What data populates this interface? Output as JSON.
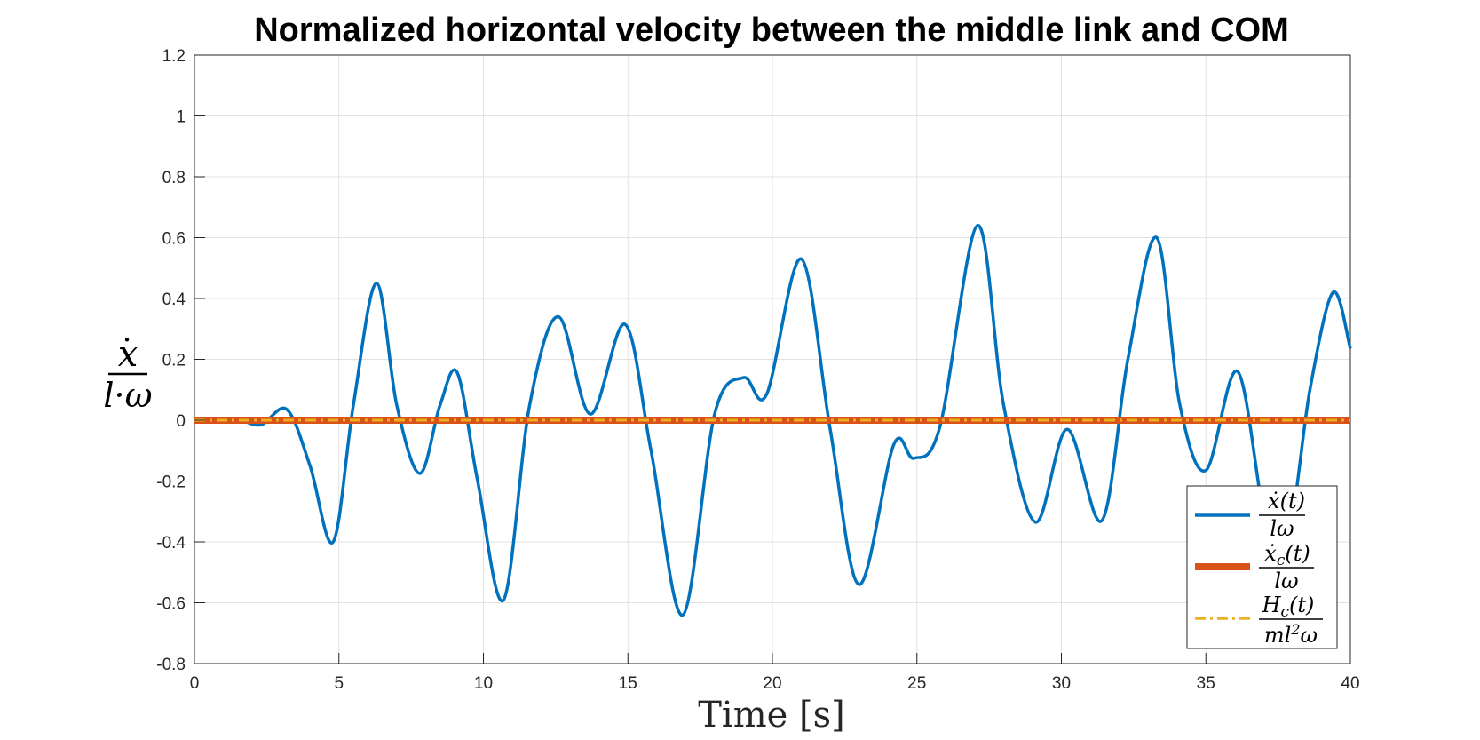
{
  "chart_data": {
    "type": "line",
    "title": "Normalized horizontal velocity between the middle link and COM",
    "xlabel": "Time [s]",
    "ylabel": "ẋ / l·ω",
    "xlim": [
      0,
      40
    ],
    "ylim": [
      -0.8,
      1.2
    ],
    "xticks": [
      0,
      5,
      10,
      15,
      20,
      25,
      30,
      35,
      40
    ],
    "yticks": [
      -0.8,
      -0.6,
      -0.4,
      -0.2,
      0,
      0.2,
      0.4,
      0.6,
      0.8,
      1,
      1.2
    ],
    "xtick_labels": [
      "0",
      "5",
      "10",
      "15",
      "20",
      "25",
      "30",
      "35",
      "40"
    ],
    "ytick_labels": [
      "-0.8",
      "-0.6",
      "-0.4",
      "-0.2",
      "0",
      "0.2",
      "0.4",
      "0.6",
      "0.8",
      "1",
      "1.2"
    ],
    "grid": true,
    "legend_position": "bottom-right",
    "series": [
      {
        "legend_num": "ẋ(t)",
        "legend_den": "lω",
        "color": "#0072BD",
        "style": "solid",
        "x": [
          0,
          1.5,
          2.3,
          3.2,
          4.0,
          4.8,
          5.5,
          6.3,
          7.0,
          7.8,
          8.5,
          9.1,
          9.8,
          10.7,
          11.6,
          12.6,
          13.7,
          14.9,
          15.8,
          16.9,
          18.0,
          19.0,
          19.8,
          21.0,
          22.0,
          23.0,
          24.2,
          24.9,
          25.8,
          27.1,
          28.0,
          29.1,
          30.2,
          31.4,
          32.3,
          33.3,
          34.1,
          35.0,
          36.1,
          37.1,
          37.9,
          38.6,
          39.4,
          40.0
        ],
        "y": [
          0,
          0,
          -0.015,
          0.035,
          -0.15,
          -0.4,
          0.05,
          0.45,
          0.05,
          -0.175,
          0.05,
          0.155,
          -0.2,
          -0.59,
          0.05,
          0.34,
          0.02,
          0.315,
          -0.1,
          -0.64,
          0.02,
          0.14,
          0.085,
          0.53,
          -0.03,
          -0.54,
          -0.08,
          -0.125,
          -0.02,
          0.64,
          0.05,
          -0.335,
          -0.03,
          -0.33,
          0.2,
          0.6,
          0.05,
          -0.165,
          0.16,
          -0.35,
          -0.35,
          0.1,
          0.42,
          0.235
        ]
      },
      {
        "legend_num": "ẋc(t)",
        "legend_den": "lω",
        "color": "#D95319",
        "style": "solid-thick",
        "x": [
          0,
          40
        ],
        "y": [
          0,
          0
        ]
      },
      {
        "legend_num": "Hc(t)",
        "legend_den": "ml²ω",
        "color": "#EDB120",
        "style": "dash-dot",
        "x": [
          0,
          40
        ],
        "y": [
          0,
          0
        ]
      }
    ]
  }
}
